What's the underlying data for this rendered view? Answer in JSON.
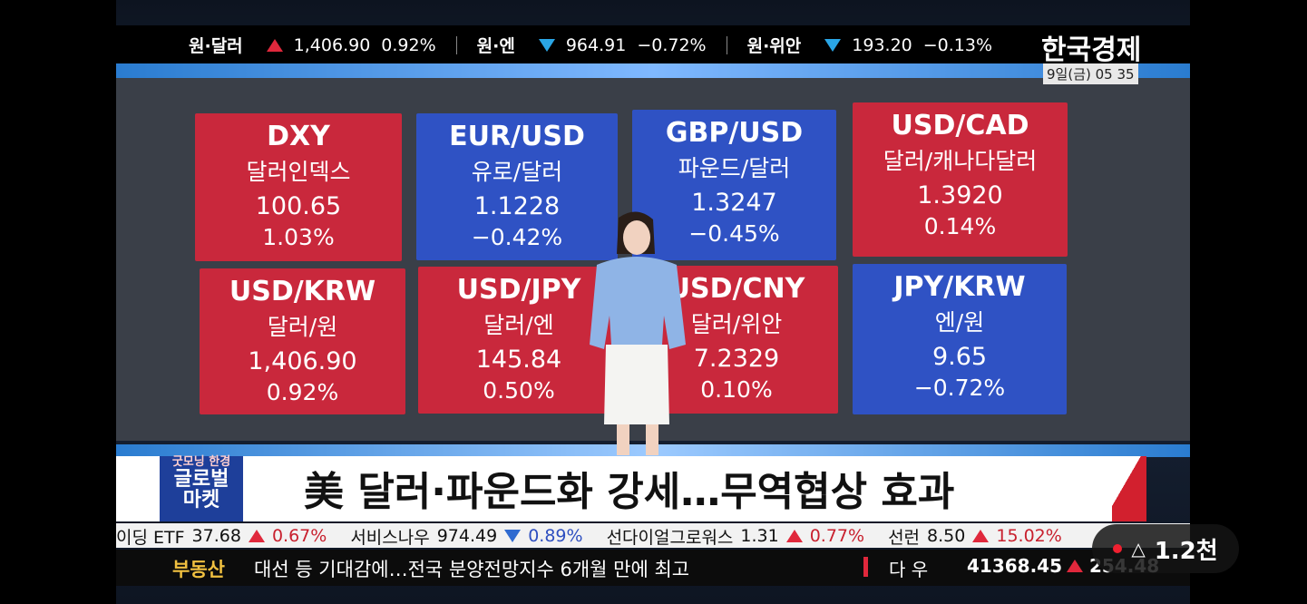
{
  "header": {
    "ticker": [
      {
        "label": "원·달러",
        "direction": "up",
        "value": "1,406.90",
        "change": "0.92%"
      },
      {
        "label": "원·엔",
        "direction": "down",
        "value": "964.91",
        "change": "−0.72%"
      },
      {
        "label": "원·위안",
        "direction": "down",
        "value": "193.20",
        "change": "−0.13%"
      }
    ],
    "brand": "한국경제",
    "timestamp": "9일(금) 05 35"
  },
  "board": {
    "cards": [
      {
        "code": "DXY",
        "name": "달러인덱스",
        "price": "100.65",
        "change": "1.03%",
        "color": "#c9283c"
      },
      {
        "code": "EUR/USD",
        "name": "유로/달러",
        "price": "1.1228",
        "change": "−0.42%",
        "color": "#2f52c4"
      },
      {
        "code": "GBP/USD",
        "name": "파운드/달러",
        "price": "1.3247",
        "change": "−0.45%",
        "color": "#2f52c4"
      },
      {
        "code": "USD/CAD",
        "name": "달러/캐나다달러",
        "price": "1.3920",
        "change": "0.14%",
        "color": "#c9283c"
      },
      {
        "code": "USD/KRW",
        "name": "달러/원",
        "price": "1,406.90",
        "change": "0.92%",
        "color": "#c9283c"
      },
      {
        "code": "USD/JPY",
        "name": "달러/엔",
        "price": "145.84",
        "change": "0.50%",
        "color": "#c9283c"
      },
      {
        "code": "USD/CNY",
        "name": "달러/위안",
        "price": "7.2329",
        "change": "0.10%",
        "color": "#c9283c"
      },
      {
        "code": "JPY/KRW",
        "name": "엔/원",
        "price": "9.65",
        "change": "−0.72%",
        "color": "#2f52c4"
      }
    ]
  },
  "headline": {
    "logo": [
      "굿모닝 한경",
      "글로벌",
      "마켓"
    ],
    "title": "美 달러·파운드화 강세…무역협상 효과"
  },
  "stock_ticker": [
    {
      "name": "이딩 ETF",
      "price": "37.68",
      "direction": "up",
      "change": "0.67%"
    },
    {
      "name": "서비스나우",
      "price": "974.49",
      "direction": "down",
      "change": "0.89%"
    },
    {
      "name": "선다이얼그로워스",
      "price": "1.31",
      "direction": "up",
      "change": "0.77%"
    },
    {
      "name": "선런",
      "price": "8.50",
      "direction": "up",
      "change": "15.02%"
    }
  ],
  "news_ticker": {
    "category": "부동산",
    "text": "대선 등 기대감에…전국 분양전망지수 6개월 만에 최고",
    "index_name": "다 우",
    "index_value": "41368.45",
    "index_change": "254.48"
  },
  "overlay": {
    "views": "1.2천"
  }
}
